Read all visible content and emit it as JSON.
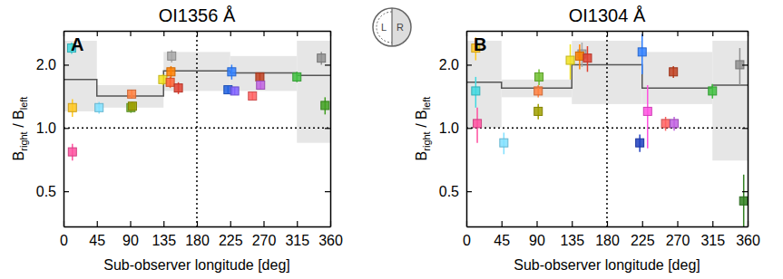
{
  "chart_data": [
    {
      "type": "scatter",
      "title": "OI1356 Å",
      "annotation": "A",
      "x_label": "Sub-observer longitude [deg]",
      "y_label": "Bright / Bleft",
      "log": "y",
      "xlim": [
        0,
        360
      ],
      "xticks": [
        0,
        45,
        90,
        135,
        180,
        225,
        270,
        315,
        360
      ],
      "ylim": [
        0.34,
        2.9
      ],
      "yticks": [
        0.5,
        {
          "value": 1,
          "label": "1.0"
        },
        {
          "value": 2,
          "label": "2.0"
        }
      ],
      "marker": "square",
      "ref_lines": {
        "x": 180,
        "y": 1
      },
      "x": [
        11,
        12,
        12,
        48,
        92,
        91,
        93,
        134,
        146,
        145,
        144,
        155,
        227,
        222,
        231,
        255,
        265,
        266,
        315,
        348,
        353
      ],
      "values": [
        2.4,
        1.25,
        0.77,
        1.25,
        1.45,
        1.25,
        1.27,
        1.7,
        2.2,
        1.85,
        1.65,
        1.55,
        1.85,
        1.52,
        1.5,
        1.42,
        1.75,
        1.6,
        1.75,
        2.15,
        1.28
      ],
      "errors": [
        0.15,
        0.12,
        0.07,
        0.08,
        0.07,
        0.07,
        0.06,
        0.1,
        0.15,
        0.12,
        0.1,
        0.1,
        0.15,
        0.06,
        0.06,
        0.06,
        0.08,
        0.08,
        0.1,
        0.15,
        0.12
      ],
      "colors": [
        "#40d8e0",
        "#ffc820",
        "#ff50a0",
        "#80e0ff",
        "#ff8040",
        "#70b030",
        "#a0a000",
        "#f0e020",
        "#a8a8a8",
        "#ff8000",
        "#ff6030",
        "#e04030",
        "#3080ff",
        "#2060e0",
        "#8060ff",
        "#ff6060",
        "#c04020",
        "#c060e0",
        "#40c040",
        "#909090",
        "#40a020"
      ],
      "step": {
        "edges": [
          0,
          45,
          135,
          225,
          315,
          360
        ],
        "values": [
          1.7,
          1.42,
          1.87,
          1.83,
          1.78
        ],
        "low": [
          1.2,
          1.25,
          1.5,
          1.5,
          0.85
        ],
        "high": [
          2.6,
          1.6,
          2.3,
          2.2,
          2.6
        ]
      }
    },
    {
      "type": "scatter",
      "title": "OI1304 Å",
      "annotation": "B",
      "x_label": "Sub-observer longitude [deg]",
      "y_label": "Bright / Bleft",
      "log": "y",
      "xlim": [
        0,
        360
      ],
      "xticks": [
        0,
        45,
        90,
        135,
        180,
        225,
        270,
        315,
        360
      ],
      "ylim": [
        0.34,
        2.9
      ],
      "yticks": [
        0.5,
        {
          "value": 1,
          "label": "1.0"
        },
        {
          "value": 2,
          "label": "2.0"
        }
      ],
      "marker": "square",
      "ref_lines": {
        "x": 180,
        "y": 1
      },
      "x": [
        12,
        12,
        14,
        48,
        93,
        92,
        92,
        133,
        148,
        145,
        155,
        225,
        222,
        232,
        255,
        265,
        266,
        315,
        350,
        355
      ],
      "values": [
        2.4,
        1.5,
        1.05,
        0.85,
        1.75,
        1.5,
        1.2,
        2.1,
        2.25,
        2.2,
        2.15,
        2.3,
        0.85,
        1.2,
        1.05,
        1.85,
        1.05,
        1.5,
        2.0,
        0.45
      ],
      "errors": [
        0.3,
        0.25,
        0.2,
        0.1,
        0.15,
        0.1,
        0.1,
        0.4,
        0.3,
        0.3,
        0.3,
        0.5,
        0.08,
        0.4,
        0.08,
        0.12,
        0.08,
        0.12,
        0.4,
        0.15
      ],
      "colors": [
        "#ffc820",
        "#40d8e0",
        "#ff50a0",
        "#80e0ff",
        "#70c030",
        "#ff8040",
        "#a0a000",
        "#f0e020",
        "#a8a8a8",
        "#ff8000",
        "#e04030",
        "#3080ff",
        "#2040c0",
        "#ff50e0",
        "#ff6060",
        "#c04020",
        "#c060e0",
        "#40c040",
        "#909090",
        "#308020"
      ],
      "step": {
        "edges": [
          0,
          45,
          135,
          225,
          315,
          360
        ],
        "values": [
          1.65,
          1.55,
          2.0,
          1.55,
          1.6
        ],
        "low": [
          1.0,
          1.4,
          1.3,
          1.3,
          0.7
        ],
        "high": [
          2.6,
          1.7,
          2.6,
          2.3,
          2.6
        ]
      }
    }
  ],
  "icon_labels": [
    "L",
    "R"
  ]
}
